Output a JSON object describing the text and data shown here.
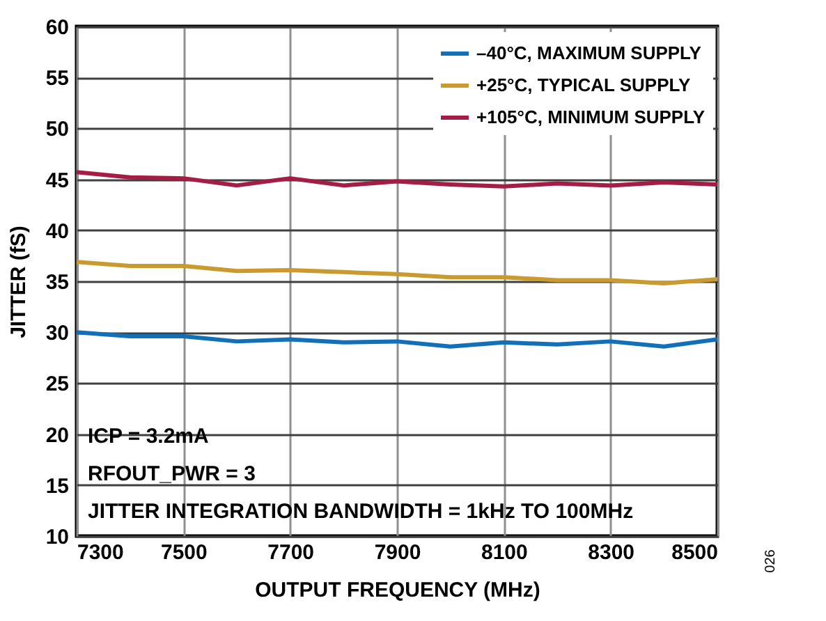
{
  "chart_data": {
    "type": "line",
    "xlabel": "OUTPUT FREQUENCY (MHz)",
    "ylabel": "JITTER (fS)",
    "x": [
      7300,
      7400,
      7500,
      7600,
      7700,
      7800,
      7900,
      8000,
      8100,
      8200,
      8300,
      8400,
      8500
    ],
    "series": [
      {
        "name": "–40°C, MAXIMUM SUPPLY",
        "color": "#1170b8",
        "values": [
          30.0,
          29.6,
          29.6,
          29.1,
          29.3,
          29.0,
          29.1,
          28.6,
          29.0,
          28.8,
          29.1,
          28.6,
          29.3
        ]
      },
      {
        "name": "+25°C, TYPICAL SUPPLY",
        "color": "#c99a2e",
        "values": [
          36.9,
          36.5,
          36.5,
          36.0,
          36.1,
          35.9,
          35.7,
          35.4,
          35.4,
          35.1,
          35.1,
          34.8,
          35.2
        ]
      },
      {
        "name": "+105°C, MINIMUM SUPPLY",
        "color": "#a51c45",
        "values": [
          45.7,
          45.2,
          45.1,
          44.4,
          45.1,
          44.4,
          44.8,
          44.5,
          44.3,
          44.6,
          44.4,
          44.7,
          44.5
        ]
      }
    ],
    "xlim": [
      7300,
      8500
    ],
    "xticks": [
      7300,
      7500,
      7700,
      7900,
      8100,
      8300,
      8500
    ],
    "ylim": [
      10,
      60
    ],
    "yticks": [
      10,
      15,
      20,
      25,
      30,
      35,
      40,
      45,
      50,
      55,
      60
    ],
    "grid": true,
    "legend": "top right",
    "marker": "none",
    "line_style": "solid",
    "annotations": [
      "ICP = 3.2mA",
      "RFOUT_PWR = 3",
      "JITTER INTEGRATION BANDWIDTH = 1kHz TO 100MHz",
      "026"
    ]
  }
}
